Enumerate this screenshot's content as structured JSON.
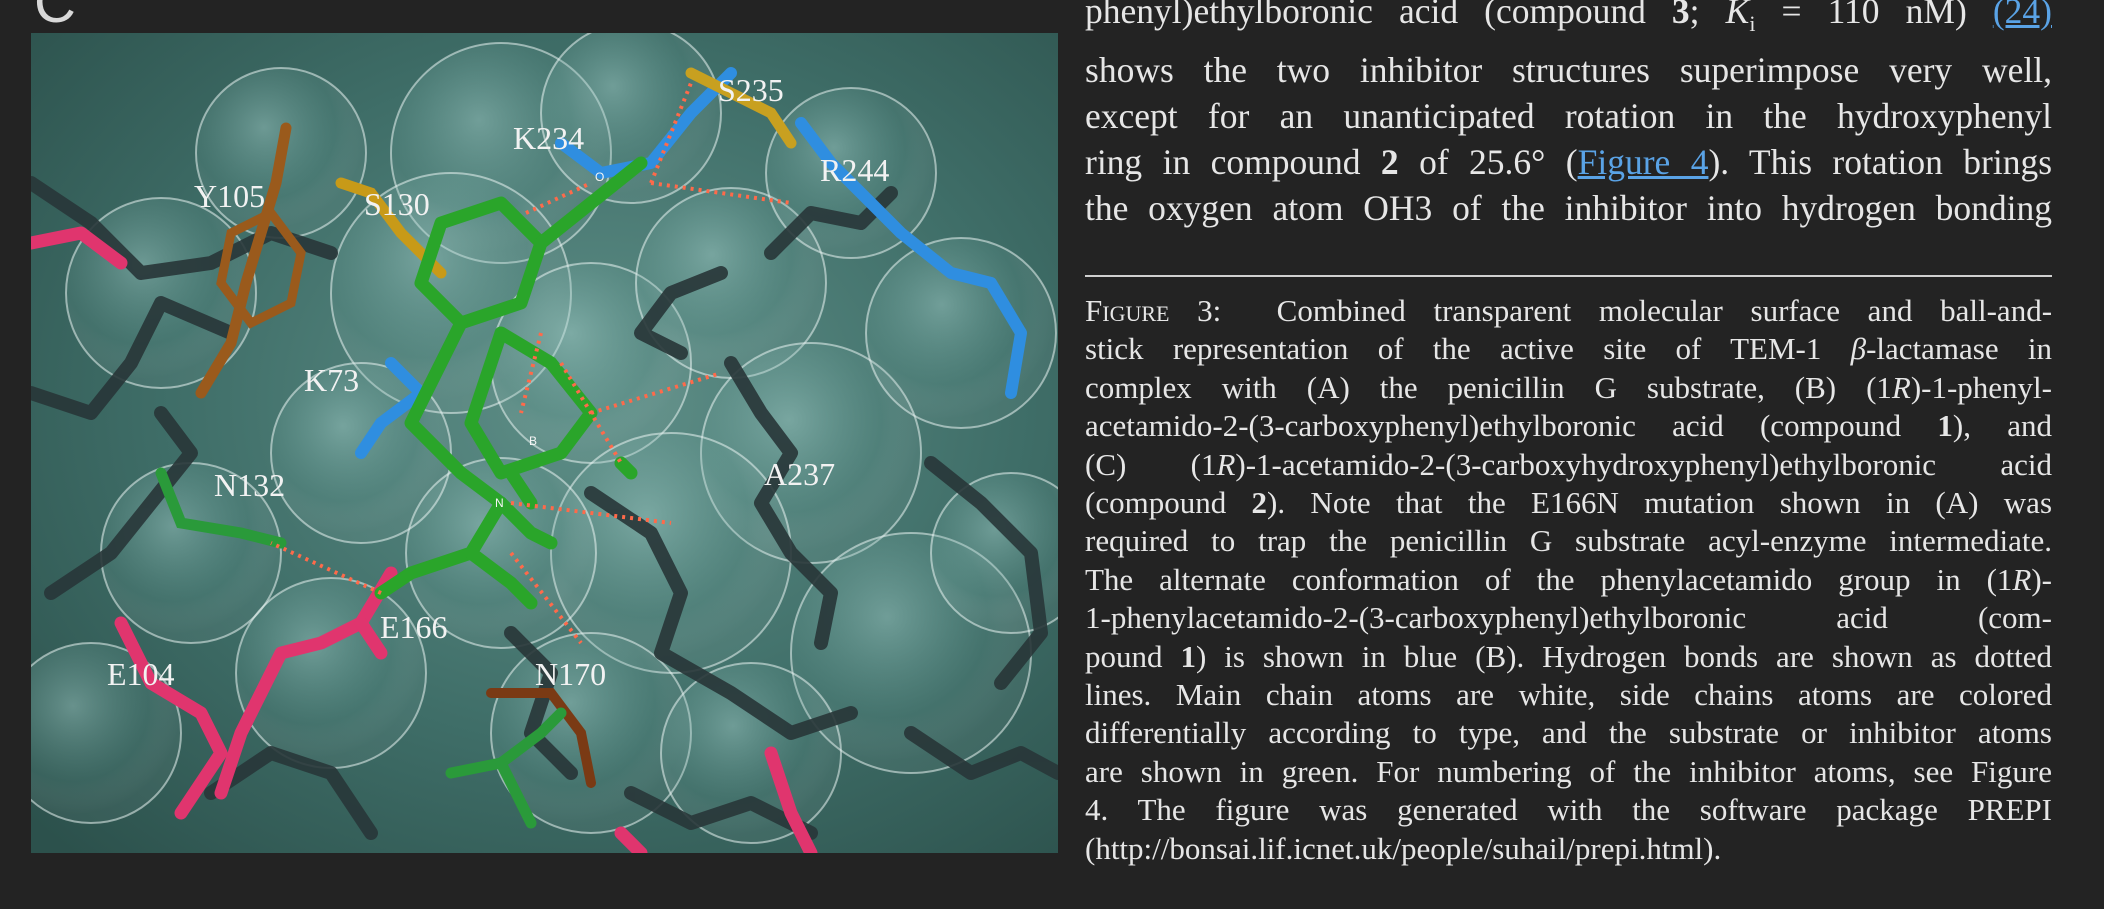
{
  "panel": {
    "letter": "C"
  },
  "figure": {
    "residue_labels": {
      "y105": "Y105",
      "s130": "S130",
      "k234": "K234",
      "s235": "S235",
      "r244": "R244",
      "k73": "K73",
      "n132": "N132",
      "a237": "A237",
      "e166": "E166",
      "e104": "E104",
      "n170": "N170"
    },
    "atom_labels": {
      "o": "O",
      "b": "B",
      "n": "N"
    }
  },
  "body": {
    "line1": {
      "pre": "phenyl)ethylboronic acid (compound ",
      "bold": "3",
      "mid": "; ",
      "k": "K",
      "sub": "i",
      "post": " = 110 nM) ",
      "ref": "(24)"
    },
    "line2": "shows the two inhibitor structures superimpose very well,",
    "line3": "except for an unanticipated rotation in the hydroxyphenyl",
    "line4": {
      "pre": "ring in compound ",
      "bold": "2",
      "mid": " of 25.6° (",
      "link": "Figure 4",
      "post": "). This rotation brings"
    },
    "line5": "the oxygen atom OH3 of the inhibitor into hydrogen bonding"
  },
  "caption": {
    "label": "Figure 3:",
    "l1": "Combined transparent molecular surface and ball-and-",
    "l2a": "stick representation of the active site of TEM-1 ",
    "beta": "β",
    "l2b": "-lactamase in",
    "l3a": "complex with (A) the penicillin G substrate, (B) (1",
    "l3r": "R",
    "l3b": ")-1-phenyl-",
    "l4a": "acetamido-2-(3-carboxyphenyl)ethylboronic acid (compound ",
    "l4b": "1",
    "l4c": "), and",
    "l5a": "(C) (1",
    "l5r": "R",
    "l5b": ")-1-acetamido-2-(3-carboxyhydroxyphenyl)ethylboronic acid",
    "l6a": "(compound ",
    "l6b": "2",
    "l6c": "). Note that the E166N mutation shown in (A) was",
    "l7": "required to trap the penicillin G substrate acyl-enzyme intermediate.",
    "l8a": "The alternate conformation of the phenylacetamido group in (1",
    "l8r": "R",
    "l8b": ")-",
    "l9": "1-phenylacetamido-2-(3-carboxyphenyl)ethylboronic acid (com-",
    "l10a": "pound ",
    "l10b": "1",
    "l10c": ") is shown in blue (B). Hydrogen bonds are shown as dotted",
    "l11": "lines. Main chain atoms are white, side chains atoms are colored",
    "l12": "differentially according to type, and the substrate or inhibitor atoms",
    "l13": "are shown in green. For numbering of the inhibitor atoms, see Figure",
    "l14": "4. The figure was generated with the software package PREPI",
    "l15": "(http://bonsai.lif.icnet.uk/people/suhail/prepi.html)."
  },
  "colors": {
    "background": "#232323",
    "surface": "#3f6f69",
    "inhibitor": "#2aa52a",
    "acidic": "#e0356e",
    "basic": "#2f8ee0",
    "polar": "#c8a020",
    "hbond": "#ff6a4a",
    "link": "#5aa3e6"
  }
}
